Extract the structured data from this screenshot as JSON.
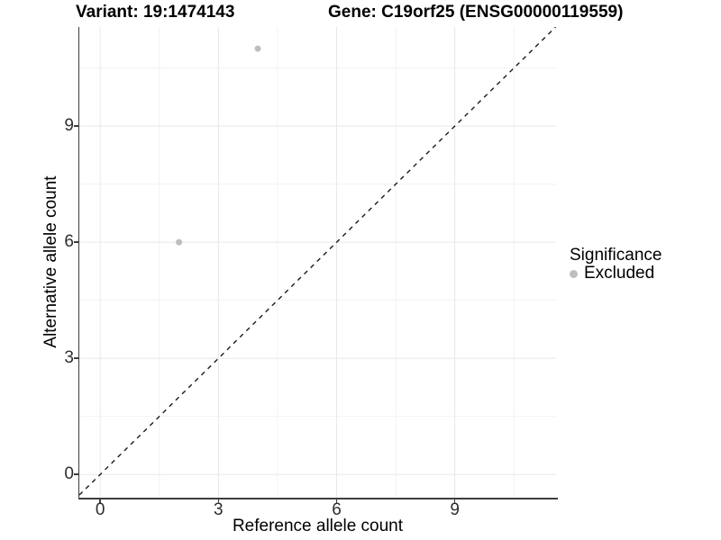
{
  "titles": {
    "variant": "Variant: 19:1474143",
    "gene": "Gene: C19orf25 (ENSG00000119559)"
  },
  "axes": {
    "x_label": "Reference allele count",
    "y_label": "Alternative allele count"
  },
  "legend": {
    "title": "Significance",
    "items": [
      {
        "label": "Excluded",
        "color": "#bebebe"
      }
    ]
  },
  "colors": {
    "background": "#ffffff",
    "axis_line": "#3d3d3d",
    "tick_text": "#2e2e2e",
    "grid_major": "#e8e8e8",
    "grid_minor": "#f2f2f2",
    "point": "#bebebe",
    "reference_line": "#1a1a1a"
  },
  "chart_data": {
    "type": "scatter",
    "title": "",
    "xlabel": "Reference allele count",
    "ylabel": "Alternative allele count",
    "xlim": [
      -0.53,
      11.57
    ],
    "ylim": [
      -0.6,
      11.56
    ],
    "x_major_ticks": [
      0,
      3,
      6,
      9
    ],
    "y_major_ticks": [
      0,
      3,
      6,
      9
    ],
    "x_minor_gridlines": [
      1.5,
      4.5,
      7.5,
      10.5
    ],
    "y_minor_gridlines": [
      1.5,
      4.5,
      7.5,
      10.5
    ],
    "grid": true,
    "legend_position": "right",
    "series": [
      {
        "name": "Excluded",
        "color": "#bebebe",
        "points": [
          {
            "x": 2,
            "y": 6
          },
          {
            "x": 4,
            "y": 11
          }
        ]
      }
    ],
    "reference_line": {
      "equation": "y = x",
      "style": "dashed",
      "color": "#1a1a1a"
    }
  }
}
